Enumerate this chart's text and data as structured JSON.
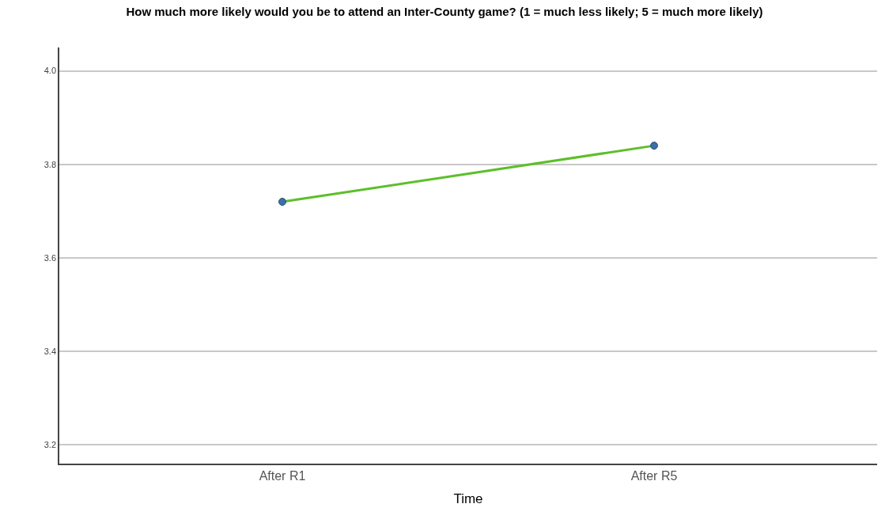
{
  "chart_data": {
    "type": "line",
    "title": "How much more likely would you be to attend an Inter-County game? (1 = much less likely; 5 = much more likely)",
    "xlabel": "Time",
    "categories": [
      "After R1",
      "After R5"
    ],
    "series": [
      {
        "color": "#5cbf2a",
        "colors": [
          "#3d6fa8",
          "#3d6fa8"
        ],
        "values": [
          3.72,
          3.84
        ]
      }
    ],
    "ylim": [
      3.16,
      4.05
    ],
    "yticks": [
      {
        "value": 3.2,
        "label": "3.2"
      },
      {
        "value": 3.4,
        "label": "3.4"
      },
      {
        "value": 3.6,
        "label": "3.6"
      },
      {
        "value": 3.8,
        "label": "3.8"
      },
      {
        "value": 4.0,
        "label": "4.0"
      }
    ],
    "grid": "y",
    "marker": "circle",
    "line_style": "solid"
  }
}
